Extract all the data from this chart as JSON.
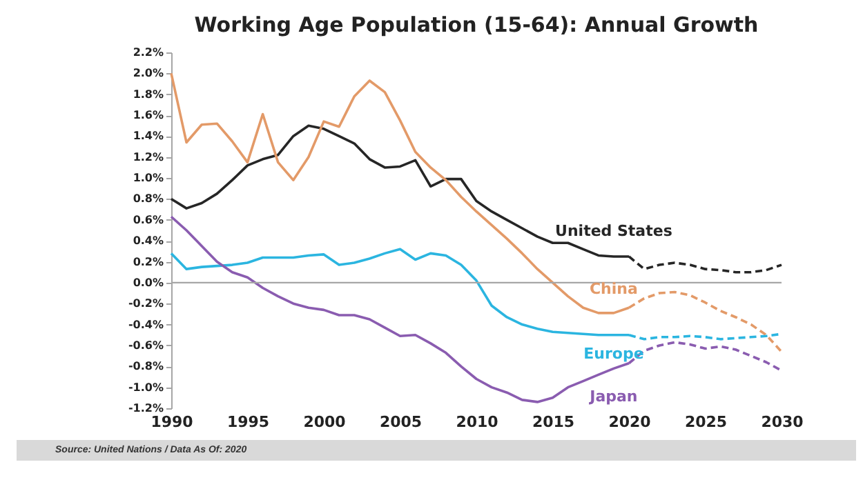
{
  "chart_data": {
    "type": "line",
    "title": "Working Age Population (15-64): Annual Growth",
    "annotations": [
      "Source: United Nations  /  Data As Of: 2020"
    ],
    "xlim": [
      1990,
      2030
    ],
    "xticks": [
      1990,
      1995,
      2000,
      2005,
      2010,
      2015,
      2020,
      2025,
      2030
    ],
    "ylim": [
      -1.2,
      2.2
    ],
    "yticks": [
      {
        "value": -1.2,
        "label": "-1.2%"
      },
      {
        "value": -1.0,
        "label": "-1.0%"
      },
      {
        "value": -0.8,
        "label": "-0.8%"
      },
      {
        "value": -0.6,
        "label": "-0.6%"
      },
      {
        "value": -0.4,
        "label": "-0.4%"
      },
      {
        "value": -0.2,
        "label": "-0.2%"
      },
      {
        "value": 0,
        "label": "0.0%"
      },
      {
        "value": 0.2,
        "label": "0.2%"
      },
      {
        "value": 0.4,
        "label": "0.4%"
      },
      {
        "value": 0.6,
        "label": "0.6%"
      },
      {
        "value": 0.8,
        "label": "0.8%"
      },
      {
        "value": 1.0,
        "label": "1.0%"
      },
      {
        "value": 1.2,
        "label": "1.2%"
      },
      {
        "value": 1.4,
        "label": "1.4%"
      },
      {
        "value": 1.6,
        "label": "1.6%"
      },
      {
        "value": 1.8,
        "label": "1.8%"
      },
      {
        "value": 2.0,
        "label": "2.0%"
      },
      {
        "value": 2.2,
        "label": "2.2%"
      }
    ],
    "grid": false,
    "legend": false,
    "ref_lines": [
      {
        "axis": "y",
        "value": 0,
        "color": "#a6a6a6"
      }
    ],
    "series": [
      {
        "name": "United States",
        "color": "#262626",
        "line_style": "solid",
        "x": [
          1990,
          1991,
          1992,
          1993,
          1994,
          1995,
          1996,
          1997,
          1998,
          1999,
          2000,
          2001,
          2002,
          2003,
          2004,
          2005,
          2006,
          2007,
          2008,
          2009,
          2010,
          2011,
          2012,
          2013,
          2014,
          2015,
          2016,
          2017,
          2018,
          2019,
          2020
        ],
        "values": [
          0.8,
          0.71,
          0.76,
          0.85,
          0.98,
          1.12,
          1.18,
          1.22,
          1.4,
          1.5,
          1.47,
          1.4,
          1.33,
          1.18,
          1.1,
          1.11,
          1.17,
          0.92,
          0.99,
          0.99,
          0.78,
          0.68,
          0.6,
          0.52,
          0.44,
          0.38,
          0.38,
          0.32,
          0.26,
          0.25,
          0.25
        ]
      },
      {
        "color": "#262626",
        "line_style": "dashed",
        "x": [
          2020,
          2021,
          2022,
          2023,
          2024,
          2025,
          2026,
          2027,
          2028,
          2029,
          2030
        ],
        "values": [
          0.25,
          0.13,
          0.17,
          0.19,
          0.17,
          0.13,
          0.12,
          0.1,
          0.1,
          0.12,
          0.17
        ]
      },
      {
        "name": "China",
        "color": "#e39a68",
        "line_style": "solid",
        "x": [
          1990,
          1991,
          1992,
          1993,
          1994,
          1995,
          1996,
          1997,
          1998,
          1999,
          2000,
          2001,
          2002,
          2003,
          2004,
          2005,
          2006,
          2007,
          2008,
          2009,
          2010,
          2011,
          2012,
          2013,
          2014,
          2015,
          2016,
          2017,
          2018,
          2019,
          2020
        ],
        "values": [
          2.0,
          1.34,
          1.51,
          1.52,
          1.35,
          1.15,
          1.61,
          1.15,
          0.98,
          1.2,
          1.54,
          1.49,
          1.78,
          1.93,
          1.82,
          1.55,
          1.25,
          1.1,
          0.98,
          0.82,
          0.68,
          0.55,
          0.42,
          0.28,
          0.13,
          0.0,
          -0.13,
          -0.24,
          -0.29,
          -0.29,
          -0.24
        ]
      },
      {
        "color": "#e39a68",
        "line_style": "dashed",
        "x": [
          2020,
          2021,
          2022,
          2023,
          2024,
          2025,
          2026,
          2027,
          2028,
          2029,
          2030
        ],
        "values": [
          -0.24,
          -0.15,
          -0.1,
          -0.09,
          -0.12,
          -0.19,
          -0.27,
          -0.33,
          -0.4,
          -0.5,
          -0.66
        ]
      },
      {
        "name": "Europe",
        "color": "#2bb5e0",
        "line_style": "solid",
        "x": [
          1990,
          1991,
          1992,
          1993,
          1994,
          1995,
          1996,
          1997,
          1998,
          1999,
          2000,
          2001,
          2002,
          2003,
          2004,
          2005,
          2006,
          2007,
          2008,
          2009,
          2010,
          2011,
          2012,
          2013,
          2014,
          2015,
          2016,
          2017,
          2018,
          2019,
          2020
        ],
        "values": [
          0.28,
          0.13,
          0.15,
          0.16,
          0.17,
          0.19,
          0.24,
          0.24,
          0.24,
          0.26,
          0.27,
          0.17,
          0.19,
          0.23,
          0.28,
          0.32,
          0.22,
          0.28,
          0.26,
          0.17,
          0.02,
          -0.22,
          -0.33,
          -0.4,
          -0.44,
          -0.47,
          -0.48,
          -0.49,
          -0.5,
          -0.5,
          -0.5
        ]
      },
      {
        "color": "#2bb5e0",
        "line_style": "dashed",
        "x": [
          2020,
          2021,
          2022,
          2023,
          2024,
          2025,
          2026,
          2027,
          2028,
          2029,
          2030
        ],
        "values": [
          -0.5,
          -0.54,
          -0.52,
          -0.52,
          -0.51,
          -0.52,
          -0.54,
          -0.53,
          -0.52,
          -0.51,
          -0.49
        ]
      },
      {
        "name": "Japan",
        "color": "#8a5cb0",
        "line_style": "solid",
        "x": [
          1990,
          1991,
          1992,
          1993,
          1994,
          1995,
          1996,
          1997,
          1998,
          1999,
          2000,
          2001,
          2002,
          2003,
          2004,
          2005,
          2006,
          2007,
          2008,
          2009,
          2010,
          2011,
          2012,
          2013,
          2014,
          2015,
          2016,
          2017,
          2018,
          2019,
          2020
        ],
        "values": [
          0.63,
          0.5,
          0.35,
          0.2,
          0.1,
          0.05,
          -0.05,
          -0.13,
          -0.2,
          -0.24,
          -0.26,
          -0.31,
          -0.31,
          -0.35,
          -0.43,
          -0.51,
          -0.5,
          -0.58,
          -0.67,
          -0.8,
          -0.92,
          -1.0,
          -1.05,
          -1.12,
          -1.14,
          -1.1,
          -1.0,
          -0.94,
          -0.88,
          -0.82,
          -0.77
        ]
      },
      {
        "color": "#8a5cb0",
        "line_style": "dashed",
        "x": [
          2020,
          2021,
          2022,
          2023,
          2024,
          2025,
          2026,
          2027,
          2028,
          2029,
          2030
        ],
        "values": [
          -0.77,
          -0.65,
          -0.6,
          -0.57,
          -0.59,
          -0.63,
          -0.61,
          -0.64,
          -0.7,
          -0.76,
          -0.84
        ]
      }
    ]
  }
}
